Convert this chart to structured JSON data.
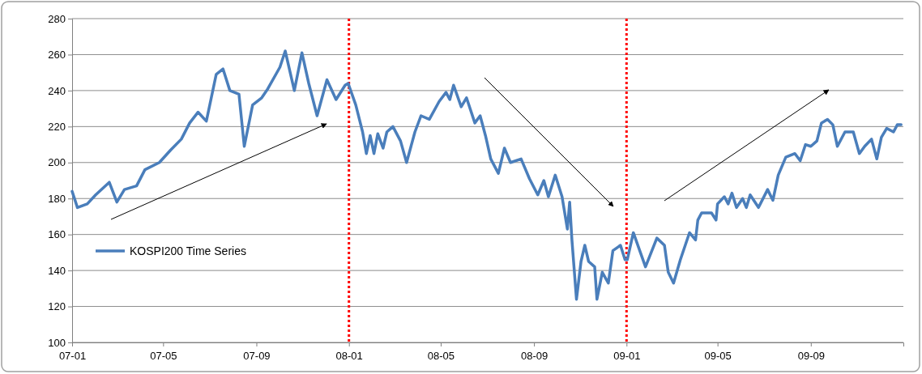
{
  "chart_data": {
    "type": "line",
    "x": [
      "2007-01-01",
      "2007-01-08",
      "2007-01-21",
      "2007-02-01",
      "2007-02-19",
      "2007-03-01",
      "2007-03-11",
      "2007-03-27",
      "2007-04-07",
      "2007-04-26",
      "2007-05-11",
      "2007-05-25",
      "2007-06-05",
      "2007-06-16",
      "2007-06-27",
      "2007-07-10",
      "2007-07-19",
      "2007-07-28",
      "2007-08-09",
      "2007-08-16",
      "2007-08-27",
      "2007-09-08",
      "2007-09-16",
      "2007-10-02",
      "2007-10-09",
      "2007-10-21",
      "2007-10-31",
      "2007-11-09",
      "2007-11-20",
      "2007-12-03",
      "2007-12-15",
      "2007-12-27",
      "2007-12-31",
      "2008-01-10",
      "2008-01-19",
      "2008-01-24",
      "2008-01-29",
      "2008-02-03",
      "2008-02-08",
      "2008-02-15",
      "2008-02-20",
      "2008-02-28",
      "2008-03-09",
      "2008-03-17",
      "2008-03-28",
      "2008-04-05",
      "2008-04-16",
      "2008-04-29",
      "2008-05-08",
      "2008-05-13",
      "2008-05-18",
      "2008-05-28",
      "2008-06-04",
      "2008-06-15",
      "2008-06-22",
      "2008-06-29",
      "2008-07-06",
      "2008-07-16",
      "2008-07-24",
      "2008-08-01",
      "2008-08-15",
      "2008-08-26",
      "2008-09-06",
      "2008-09-14",
      "2008-09-20",
      "2008-09-29",
      "2008-10-08",
      "2008-10-15",
      "2008-10-18",
      "2008-10-21",
      "2008-10-27",
      "2008-11-02",
      "2008-11-07",
      "2008-11-12",
      "2008-11-20",
      "2008-11-23",
      "2008-11-30",
      "2008-12-08",
      "2008-12-14",
      "2008-12-24",
      "2008-12-30",
      "2009-01-02",
      "2009-01-10",
      "2009-01-26",
      "2009-02-10",
      "2009-02-20",
      "2009-02-25",
      "2009-03-04",
      "2009-03-13",
      "2009-03-25",
      "2009-04-02",
      "2009-04-05",
      "2009-04-10",
      "2009-04-23",
      "2009-04-29",
      "2009-05-01",
      "2009-05-10",
      "2009-05-15",
      "2009-05-20",
      "2009-05-26",
      "2009-06-03",
      "2009-06-08",
      "2009-06-13",
      "2009-06-24",
      "2009-07-06",
      "2009-07-13",
      "2009-07-20",
      "2009-07-30",
      "2009-08-11",
      "2009-08-18",
      "2009-08-25",
      "2009-09-01",
      "2009-09-09",
      "2009-09-15",
      "2009-09-23",
      "2009-09-30",
      "2009-10-06",
      "2009-10-16",
      "2009-10-27",
      "2009-11-04",
      "2009-11-11",
      "2009-11-20",
      "2009-11-27",
      "2009-12-03",
      "2009-12-10",
      "2009-12-19",
      "2009-12-24",
      "2009-12-29"
    ],
    "series": [
      {
        "name": "KOSPI200 Time Series",
        "color": "#4a7ebb",
        "values": [
          184,
          175,
          177,
          182,
          189,
          178,
          185,
          187,
          196,
          200,
          207,
          213,
          222,
          228,
          223,
          249,
          252,
          240,
          238,
          209,
          232,
          236,
          241,
          253,
          262,
          240,
          261,
          244,
          226,
          246,
          235,
          243,
          244,
          232,
          217,
          205,
          215,
          205,
          216,
          208,
          217,
          220,
          212,
          200,
          217,
          226,
          224,
          234,
          239,
          235,
          243,
          231,
          236,
          222,
          226,
          215,
          202,
          194,
          208,
          200,
          202,
          191,
          182,
          190,
          181,
          193,
          181,
          163,
          178,
          157,
          124,
          145,
          154,
          145,
          142,
          124,
          139,
          133,
          151,
          154,
          146,
          146,
          161,
          142,
          158,
          154,
          139,
          133,
          146,
          161,
          157,
          168,
          172,
          172,
          168,
          177,
          181,
          177,
          183,
          175,
          180,
          175,
          182,
          175,
          185,
          179,
          193,
          203,
          205,
          201,
          210,
          209,
          212,
          222,
          224,
          221,
          209,
          217,
          217,
          205,
          209,
          213,
          202,
          214,
          219,
          217,
          221,
          221
        ]
      }
    ],
    "xlim": [
      "2007-01-01",
      "2010-01-01"
    ],
    "xticks": [
      {
        "value": "2007-01-01",
        "label": "07-01"
      },
      {
        "value": "2007-05-01",
        "label": "07-05"
      },
      {
        "value": "2007-09-01",
        "label": "07-09"
      },
      {
        "value": "2008-01-01",
        "label": "08-01"
      },
      {
        "value": "2008-05-01",
        "label": "08-05"
      },
      {
        "value": "2008-09-01",
        "label": "08-09"
      },
      {
        "value": "2009-01-01",
        "label": "09-01"
      },
      {
        "value": "2009-05-01",
        "label": "09-05"
      },
      {
        "value": "2009-09-01",
        "label": "09-09"
      }
    ],
    "ylim": [
      100,
      280
    ],
    "yticks": [
      100,
      120,
      140,
      160,
      180,
      200,
      220,
      240,
      260,
      280
    ],
    "grid": "y",
    "legend": "left",
    "ref_lines": [
      {
        "axis": "x",
        "value": "2008-01-01",
        "color": "#ff0000",
        "line_style": "dotted"
      },
      {
        "axis": "x",
        "value": "2009-01-01",
        "color": "#ff0000",
        "line_style": "dotted"
      }
    ]
  }
}
